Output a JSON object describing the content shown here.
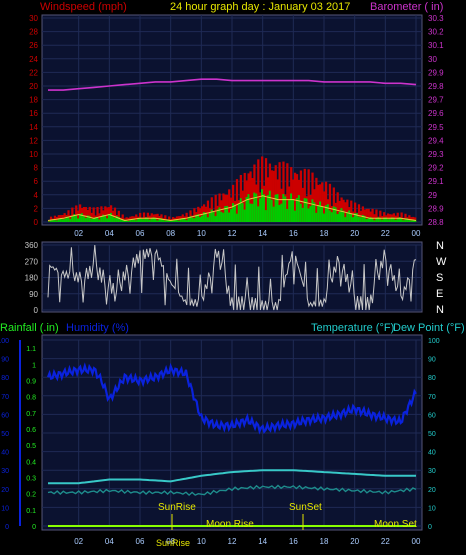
{
  "header": {
    "left": "Windspeed (mph)",
    "center": "24 hour graph day : January 03 2017",
    "right": "Barometer ( in)"
  },
  "labels": {
    "rainfall": "Rainfall (.in)",
    "humidity": "Humidity (%)",
    "temperature": "Temperature (°F)",
    "dewpoint": "Dew Point (°F)",
    "sunrise": "SunRise",
    "sunset": "SunSet",
    "moonrise": "Moon Rise",
    "moonset": "Moon Set",
    "sunrise_bottom": "SunRise"
  },
  "colors": {
    "wind_gust": "#cc0000",
    "wind_avg": "#00cc00",
    "wind_line": "#e8c840",
    "barometer": "#cc33cc",
    "direction": "#c8c8c8",
    "humidity": "#0a22dd",
    "temperature": "#38c8c8",
    "dewpoint": "#1e8c8c",
    "rain": "#88ff00",
    "axis_left_top": "#cc0000",
    "axis_right_top": "#cc33cc",
    "axis_left_bottom": "#22ee22",
    "axis_right_bottom": "#22cccc"
  },
  "chart_data": [
    {
      "type": "bar",
      "panel": "wind_barometer",
      "x_ticks": [
        "02",
        "04",
        "06",
        "08",
        "10",
        "12",
        "14",
        "16",
        "18",
        "20",
        "22",
        "00"
      ],
      "y_left_ticks": [
        "0",
        "2",
        "4",
        "6",
        "8",
        "10",
        "12",
        "14",
        "16",
        "18",
        "20",
        "22",
        "24",
        "26",
        "28",
        "30"
      ],
      "y_right_ticks": [
        "28.8",
        "28.9",
        "29",
        "29.1",
        "29.2",
        "29.3",
        "29.4",
        "29.5",
        "29.6",
        "29.7",
        "29.8",
        "29.9",
        "30",
        "30.1",
        "30.2",
        "30.3"
      ],
      "ylim_left": [
        0,
        30
      ],
      "ylim_right": [
        28.8,
        30.3
      ],
      "series": [
        {
          "name": "Windspeed (mph)",
          "x": [
            0,
            1,
            2,
            3,
            4,
            5,
            6,
            7,
            8,
            9,
            10,
            11,
            12,
            13,
            14,
            15,
            16,
            17,
            18,
            19,
            20,
            21,
            22,
            23,
            24
          ],
          "gust": [
            0.5,
            1,
            2,
            1.5,
            2,
            0.5,
            1,
            1,
            0.5,
            1,
            2,
            3,
            4,
            6,
            7,
            6.5,
            6,
            5.5,
            4.5,
            3,
            2,
            1.5,
            1,
            1,
            0.5
          ],
          "avg": [
            0.2,
            0.5,
            1,
            0.5,
            1,
            0.2,
            0.5,
            0.5,
            0.2,
            0.5,
            1,
            1.5,
            2,
            3,
            3.5,
            3,
            3,
            2.5,
            2,
            1.5,
            1,
            0.5,
            0.5,
            0.5,
            0.2
          ]
        },
        {
          "name": "Barometer ( in)",
          "x": [
            0,
            1,
            2,
            3,
            4,
            5,
            6,
            7,
            8,
            9,
            10,
            11,
            12,
            13,
            14,
            15,
            16,
            17,
            18,
            19,
            20,
            21,
            22,
            23,
            24
          ],
          "values": [
            29.77,
            29.77,
            29.78,
            29.79,
            29.8,
            29.81,
            29.82,
            29.83,
            29.83,
            29.84,
            29.85,
            29.85,
            29.84,
            29.84,
            29.84,
            29.84,
            29.84,
            29.84,
            29.83,
            29.83,
            29.83,
            29.83,
            29.82,
            29.82,
            29.81
          ]
        }
      ]
    },
    {
      "type": "line",
      "panel": "wind_direction",
      "y_left_ticks": [
        "0",
        "90",
        "180",
        "270",
        "360"
      ],
      "y_right_ticks": [
        "N",
        "E",
        "S",
        "W",
        "N"
      ],
      "ylim": [
        0,
        360
      ],
      "series": [
        {
          "name": "Direction",
          "x": [
            0,
            1,
            2,
            3,
            4,
            4.5,
            5,
            6,
            7,
            8,
            9,
            10,
            11,
            12,
            13,
            14,
            15,
            16,
            17,
            18,
            19,
            20,
            21,
            22,
            23,
            24
          ],
          "values": [
            250,
            200,
            180,
            220,
            160,
            60,
            200,
            300,
            330,
            150,
            40,
            40,
            330,
            30,
            40,
            20,
            20,
            340,
            30,
            40,
            300,
            40,
            30,
            320,
            50,
            290
          ]
        }
      ]
    },
    {
      "type": "line",
      "panel": "temp_humidity_rain",
      "x_ticks": [
        "02",
        "04",
        "06",
        "08",
        "10",
        "12",
        "14",
        "16",
        "18",
        "20",
        "22",
        "00"
      ],
      "y_left_ticks": [
        "0",
        "0.1",
        "0.2",
        "0.3",
        "0.4",
        "0.5",
        "0.6",
        "0.7",
        "0.8",
        "0.9",
        "1",
        "1.1"
      ],
      "y_humidity_ticks": [
        "0",
        "10",
        "20",
        "30",
        "40",
        "50",
        "60",
        "70",
        "80",
        "90",
        "100"
      ],
      "y_right_ticks": [
        "0",
        "10",
        "20",
        "30",
        "40",
        "50",
        "60",
        "70",
        "80",
        "90",
        "100"
      ],
      "ylim": [
        0,
        100
      ],
      "series": [
        {
          "name": "Humidity (%)",
          "x": [
            0,
            1,
            2,
            3,
            3.5,
            4,
            5,
            6,
            7,
            8,
            9,
            10,
            11,
            12,
            13,
            14,
            15,
            16,
            17,
            18,
            19,
            20,
            21,
            22,
            23,
            24
          ],
          "values": [
            80,
            82,
            84,
            84,
            78,
            68,
            80,
            78,
            80,
            84,
            82,
            58,
            54,
            54,
            57,
            52,
            54,
            55,
            57,
            58,
            60,
            63,
            60,
            58,
            56,
            72
          ]
        },
        {
          "name": "Temperature (°F)",
          "x": [
            0,
            2,
            4,
            6,
            8,
            10,
            12,
            14,
            16,
            18,
            20,
            22,
            24
          ],
          "values": [
            23,
            23,
            25,
            25,
            24,
            27,
            29,
            30,
            30,
            29,
            28,
            27,
            27
          ]
        },
        {
          "name": "Dew Point (°F)",
          "x": [
            0,
            2,
            4,
            6,
            8,
            10,
            12,
            14,
            16,
            18,
            20,
            22,
            24
          ],
          "values": [
            18,
            18,
            19,
            18,
            18,
            17,
            20,
            21,
            21,
            20,
            19,
            18,
            20
          ]
        },
        {
          "name": "Rainfall (.in)",
          "x": [
            0,
            24
          ],
          "values": [
            0,
            0
          ]
        }
      ]
    }
  ]
}
